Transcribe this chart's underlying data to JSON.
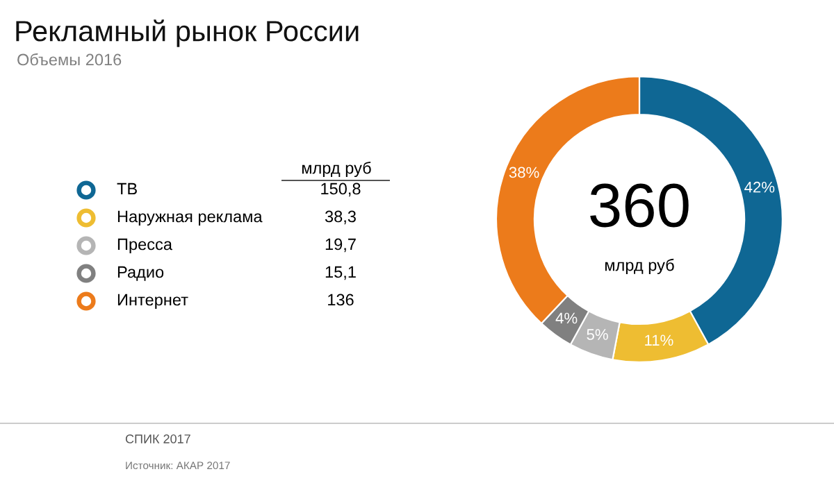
{
  "chart_data": {
    "type": "donut",
    "title": "Рекламный рынок России",
    "subtitle": "Объемы 2016",
    "categories": [
      "ТВ",
      "Наружная реклама",
      "Пресса",
      "Радио",
      "Интернет"
    ],
    "values": [
      42,
      11,
      5,
      4,
      38
    ],
    "value_labels": [
      "42%",
      "11%",
      "5%",
      "4%",
      "38%"
    ],
    "colors": [
      "#0f6794",
      "#eebd32",
      "#b5b5b5",
      "#808080",
      "#ec7b1b"
    ],
    "legend": "left",
    "legend_title": "млрд руб",
    "annotations": [
      "360",
      "млрд руб",
      "СПИК 2017",
      "Источник: АКАР 2017",
      "150,8",
      "38,3",
      "19,7",
      "15,1",
      "136"
    ]
  }
}
